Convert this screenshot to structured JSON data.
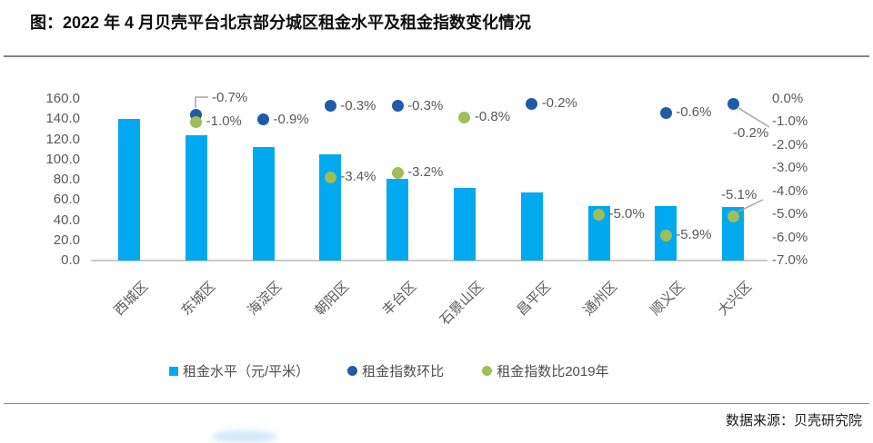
{
  "chart_data": {
    "type": "bar",
    "title": "图：2022 年 4 月贝壳平台北京部分城区租金水平及租金指数变化情况",
    "categories": [
      "西城区",
      "东城区",
      "海淀区",
      "朝阳区",
      "丰台区",
      "石景山区",
      "昌平区",
      "通州区",
      "顺义区",
      "大兴区"
    ],
    "series": [
      {
        "name": "租金水平（元/平米）",
        "type": "bar",
        "axis": "left",
        "color": "#00a9f0",
        "values": [
          140,
          124,
          112,
          105,
          81,
          72,
          67,
          54,
          54,
          53
        ]
      },
      {
        "name": "租金指数环比",
        "type": "scatter",
        "axis": "right",
        "color": "#1f5ba6",
        "values": [
          null,
          -0.7,
          -0.9,
          -0.3,
          -0.3,
          null,
          -0.2,
          null,
          -0.6,
          -0.2
        ],
        "labels": [
          null,
          "-0.7%",
          "-0.9%",
          "-0.3%",
          "-0.3%",
          null,
          "-0.2%",
          null,
          "-0.6%",
          "-0.2%"
        ]
      },
      {
        "name": "租金指数比2019年",
        "type": "scatter",
        "axis": "right",
        "color": "#a1bc58",
        "values": [
          null,
          -1.0,
          null,
          -3.4,
          -3.2,
          -0.8,
          null,
          -5.0,
          -5.9,
          -5.1
        ],
        "labels": [
          null,
          "-1.0%",
          null,
          "-3.4%",
          "-3.2%",
          "-0.8%",
          null,
          "-5.0%",
          "-5.9%",
          "-5.1%"
        ]
      }
    ],
    "left_axis": {
      "min": 0,
      "max": 160,
      "ticks": [
        "160.0",
        "140.0",
        "120.0",
        "100.0",
        "80.0",
        "60.0",
        "40.0",
        "20.0",
        "0.0"
      ]
    },
    "right_axis": {
      "min": -7,
      "max": 0,
      "ticks": [
        "0.0%",
        "-1.0%",
        "-2.0%",
        "-3.0%",
        "-4.0%",
        "-5.0%",
        "-6.0%",
        "-7.0%"
      ]
    },
    "grid": false,
    "legend_position": "bottom"
  },
  "source": "数据来源：贝壳研究院",
  "colors": {
    "bar": "#00a9f0",
    "dot_mom": "#1f5ba6",
    "dot_2019": "#a1bc58",
    "axis_text": "#595959",
    "leader_line": "#a6a6a6",
    "axis_line": "#c9c9c9"
  }
}
